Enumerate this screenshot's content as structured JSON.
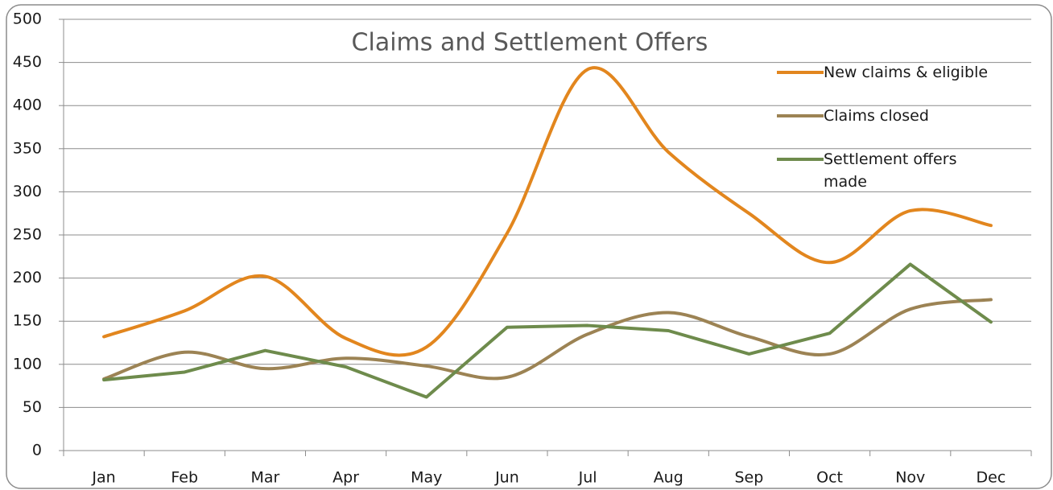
{
  "chart_data": {
    "type": "line",
    "title": "Claims and Settlement Offers",
    "categories": [
      "Jan",
      "Feb",
      "Mar",
      "Apr",
      "May",
      "Jun",
      "Jul",
      "Aug",
      "Sep",
      "Oct",
      "Nov",
      "Dec"
    ],
    "series": [
      {
        "name": "New claims & eligible",
        "color": "#e2861e",
        "smooth": true,
        "values": [
          132,
          162,
          202,
          130,
          120,
          252,
          442,
          346,
          275,
          218,
          278,
          261
        ]
      },
      {
        "name": "Claims closed",
        "color": "#9c8354",
        "smooth": true,
        "values": [
          83,
          114,
          95,
          107,
          98,
          85,
          135,
          160,
          132,
          112,
          164,
          175
        ]
      },
      {
        "name": "Settlement offers made",
        "color": "#6e8b4c",
        "smooth": false,
        "values": [
          82,
          91,
          116,
          97,
          62,
          143,
          145,
          139,
          112,
          136,
          216,
          149
        ]
      }
    ],
    "ylim": [
      0,
      500
    ],
    "yticks": [
      0,
      50,
      100,
      150,
      200,
      250,
      300,
      350,
      400,
      450,
      500
    ],
    "grid": true,
    "legend": "top-right"
  }
}
